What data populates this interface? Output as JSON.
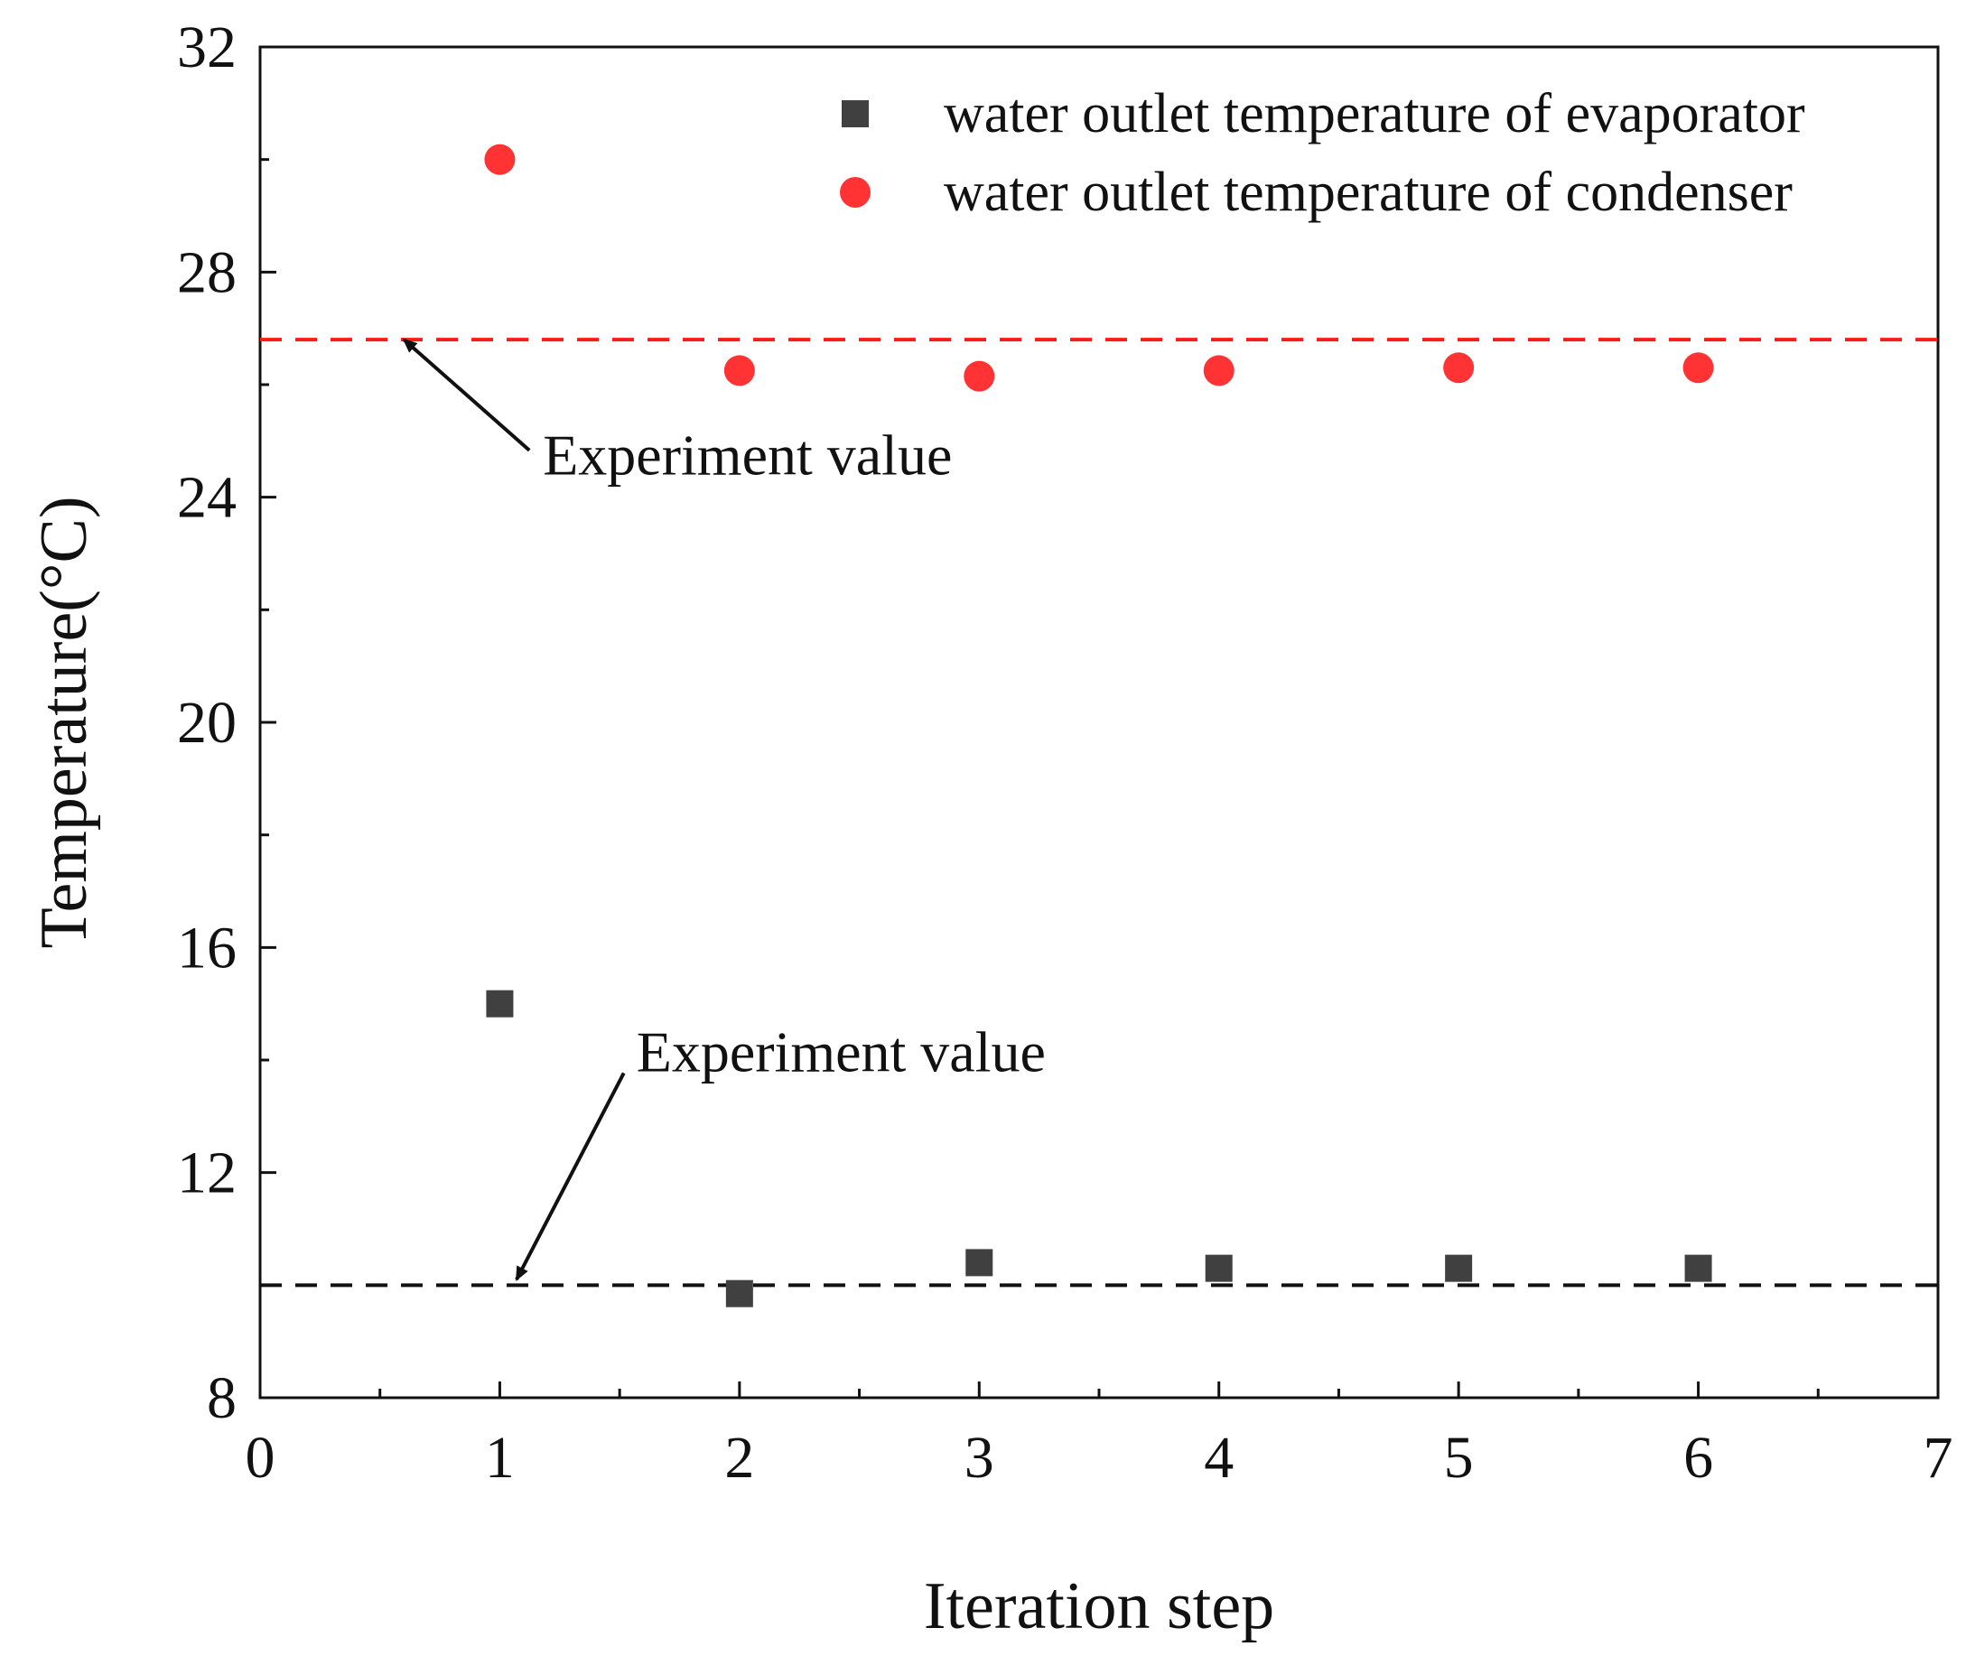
{
  "chart_data": {
    "type": "scatter",
    "title": "",
    "xlabel": "Iteration step",
    "ylabel": "Temperature(°C)",
    "xlim": [
      0,
      7
    ],
    "ylim": [
      8,
      32
    ],
    "x_ticks": [
      0,
      1,
      2,
      3,
      4,
      5,
      6,
      7
    ],
    "x_tick_labels": [
      "0",
      "1",
      "2",
      "3",
      "4",
      "5",
      "6",
      "7"
    ],
    "y_ticks": [
      8,
      12,
      16,
      20,
      24,
      28,
      32
    ],
    "y_tick_labels": [
      "8",
      "12",
      "16",
      "20",
      "24",
      "28",
      "32"
    ],
    "x_minor_ticks": [
      0.5,
      1.5,
      2.5,
      3.5,
      4.5,
      5.5,
      6.5
    ],
    "y_minor_ticks": [
      10,
      14,
      18,
      22,
      26,
      30
    ],
    "grid": false,
    "legend_position": "top-right",
    "series": [
      {
        "name": "water outlet temperature of evaporator",
        "marker": "square",
        "color": "#404040",
        "x": [
          1,
          2,
          3,
          4,
          5,
          6
        ],
        "y": [
          15.0,
          9.85,
          10.4,
          10.3,
          10.3,
          10.3
        ]
      },
      {
        "name": "water outlet temperature of condenser",
        "marker": "circle",
        "color": "#ff3333",
        "x": [
          1,
          2,
          3,
          4,
          5,
          6
        ],
        "y": [
          30.0,
          26.25,
          26.15,
          26.25,
          26.3,
          26.3
        ]
      }
    ],
    "reference_lines": [
      {
        "name": "condenser-experiment-line",
        "y": 26.8,
        "style": "dashed",
        "color": "#ff1a1a"
      },
      {
        "name": "evaporator-experiment-line",
        "y": 10.0,
        "style": "dashed",
        "color": "#111111"
      }
    ],
    "annotations": [
      {
        "text": "Experiment value",
        "text_x": 1.18,
        "text_y": 24.4,
        "arrow_to_x": 0.6,
        "arrow_to_y": 26.8,
        "target": "condenser-experiment-line"
      },
      {
        "text": "Experiment value",
        "text_x": 1.57,
        "text_y": 13.8,
        "arrow_to_x": 1.07,
        "arrow_to_y": 10.1,
        "target": "evaporator-experiment-line"
      }
    ]
  }
}
